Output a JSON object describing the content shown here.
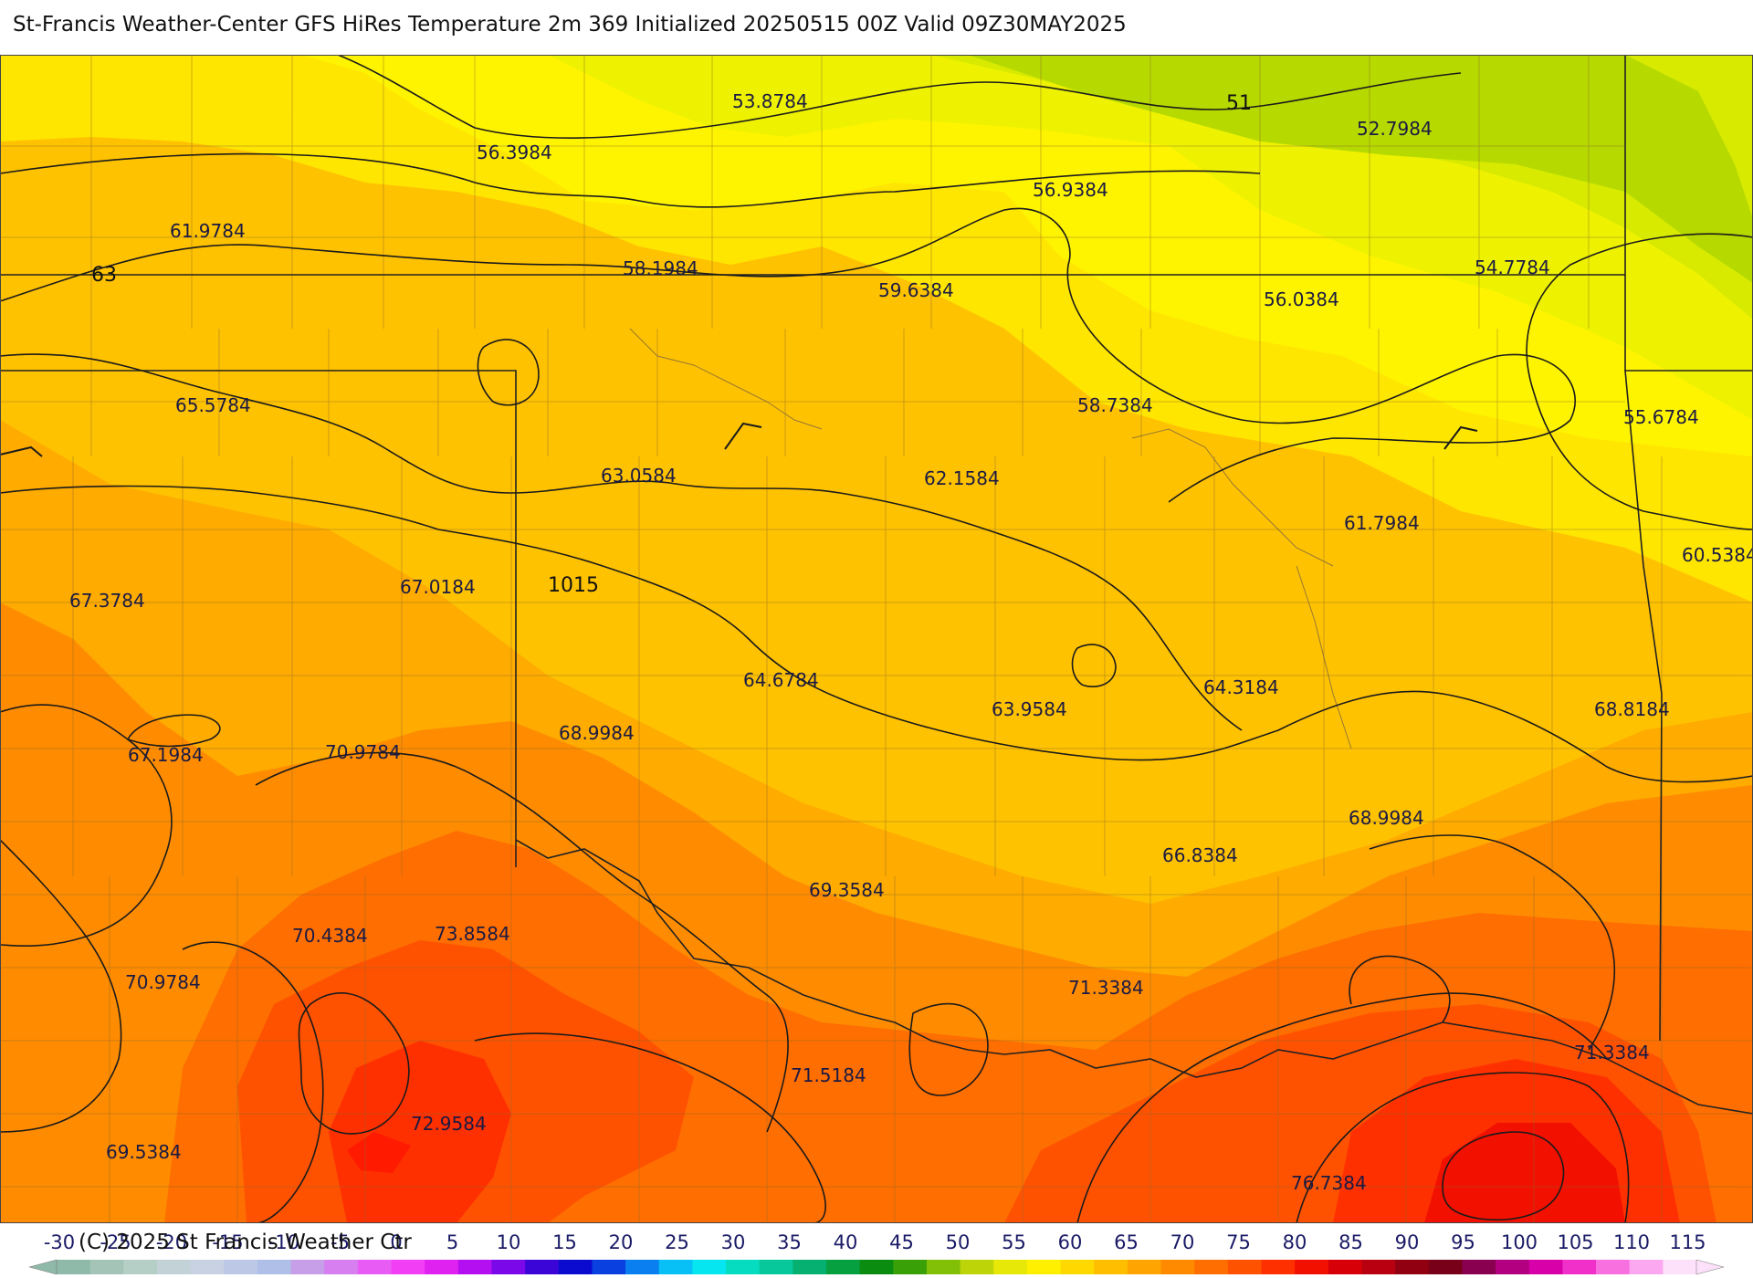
{
  "title": "St-Francis Weather-Center GFS HiRes Temperature 2m  369 Initialized 20250515 00Z Valid 09Z30MAY2025",
  "copyright": "(C) 2025 St Francis Weather Ctr",
  "temperature_labels": [
    "53.8784",
    "51",
    "52.7984",
    "56.3984",
    "56.9384",
    "61.9784",
    "63",
    "58.1984",
    "59.6384",
    "54.7784",
    "56.0384",
    "65.5784",
    "58.7384",
    "55.6784",
    "63.0584",
    "62.1584",
    "61.7984",
    "60.5384",
    "67.3784",
    "67.0184",
    "1015",
    "64.6784",
    "63.9584",
    "64.3184",
    "68.8184",
    "68.9984",
    "67.1984",
    "70.9784",
    "68.9984",
    "66.8384",
    "69.3584",
    "70.4384",
    "73.8584",
    "70.9784",
    "71.3384",
    "71.3384",
    "71.5184",
    "72.9584",
    "69.5384",
    "76.7384"
  ],
  "colorbar": {
    "ticks": [
      "-30",
      "-25",
      "-20",
      "-15",
      "-10",
      "-5",
      "0",
      "5",
      "10",
      "15",
      "20",
      "25",
      "30",
      "35",
      "40",
      "45",
      "50",
      "55",
      "60",
      "65",
      "70",
      "75",
      "80",
      "85",
      "90",
      "95",
      "100",
      "105",
      "110",
      "115"
    ],
    "colors": [
      "#8fb9a8",
      "#a3c4b6",
      "#b5cfc6",
      "#c3d2d6",
      "#c8d2e2",
      "#bcc8e6",
      "#b0bfe8",
      "#c79ee8",
      "#d77ff0",
      "#e85cf5",
      "#f23ff6",
      "#e022f0",
      "#b40ff0",
      "#7a08e8",
      "#3c05d8",
      "#0b0bd0",
      "#0a3fe0",
      "#0a7ff0",
      "#08c0f6",
      "#06e6f0",
      "#06dcc0",
      "#06c89a",
      "#06b070",
      "#06a040",
      "#0a8c10",
      "#3aa008",
      "#82c008",
      "#bcd408",
      "#e8e808",
      "#fff000",
      "#ffd800",
      "#ffbe00",
      "#ffa400",
      "#ff8a00",
      "#ff6e00",
      "#ff5200",
      "#ff3000",
      "#f21000",
      "#d80008",
      "#b80010",
      "#900010",
      "#780018",
      "#8a0050",
      "#b20080",
      "#d800a8",
      "#f030c8",
      "#f870e0",
      "#fca8f0",
      "#fde0fa"
    ]
  },
  "colors": {
    "background": "#ffffff",
    "contour": "#1b1b1b",
    "border": "#222222",
    "river": "#6b5a4a"
  }
}
